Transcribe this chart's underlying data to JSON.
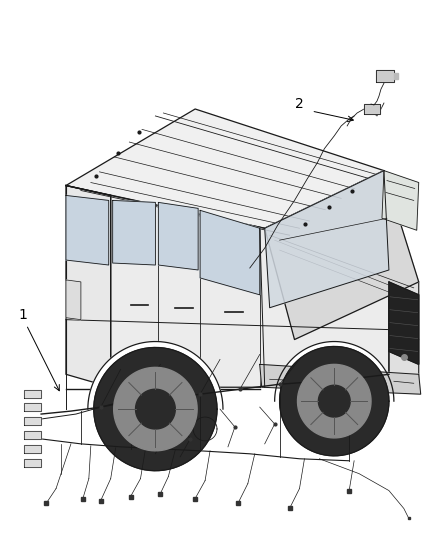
{
  "background_color": "#ffffff",
  "fig_width": 4.38,
  "fig_height": 5.33,
  "dpi": 100,
  "label1": "1",
  "label2": "2",
  "line_color": "#1a1a1a",
  "text_color": "#000000",
  "label_fontsize": 10
}
